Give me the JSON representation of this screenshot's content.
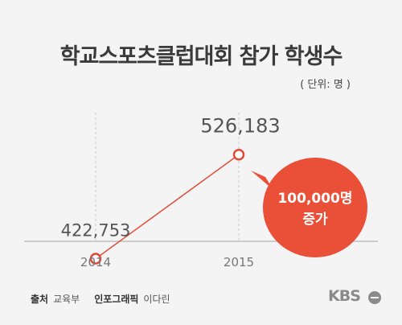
{
  "title": "학교스포츠클럽대회 참가 학생수",
  "unit_note": "( 단위: 명 )",
  "callout": {
    "line1": "100,000명",
    "line2": "증가"
  },
  "footer": {
    "source_label": "출처",
    "source_value": "교육부",
    "graphic_label": "인포그래픽",
    "graphic_value": "이다린"
  },
  "logo_text": "KBS",
  "colors": {
    "line": "#e14a36",
    "callout": "#ea4f38",
    "text": "#555555"
  },
  "chart_data": {
    "type": "line",
    "title": "학교스포츠클럽대회 참가 학생수",
    "xlabel": "",
    "ylabel": "",
    "categories": [
      "2014",
      "2015"
    ],
    "series": [
      {
        "values": [
          422753,
          526183
        ],
        "labels": [
          "422,753",
          "526,183"
        ]
      }
    ],
    "ylim": [
      400000,
      540000
    ],
    "grid": "vertical-dashed"
  }
}
